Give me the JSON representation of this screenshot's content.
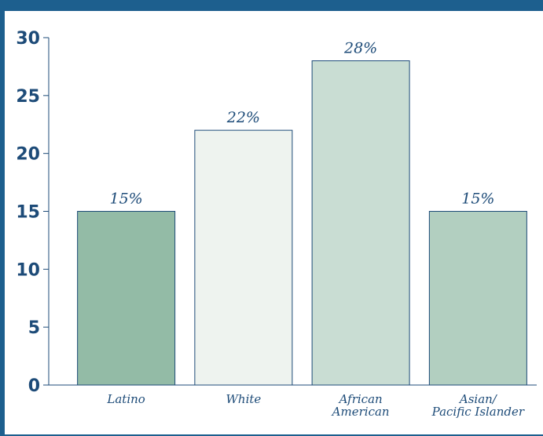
{
  "chart_data": {
    "type": "bar",
    "categories": [
      [
        "Latino"
      ],
      [
        "White"
      ],
      [
        "African",
        "American"
      ],
      [
        "Asian/",
        "Pacific Islander"
      ]
    ],
    "values": [
      15,
      22,
      28,
      15
    ],
    "value_labels": [
      "15%",
      "22%",
      "28%",
      "15%"
    ],
    "colors": [
      "#93bba6",
      "#eef3ef",
      "#c9ddd3",
      "#b2cfc0"
    ],
    "yticks": [
      0,
      5,
      10,
      15,
      20,
      25,
      30
    ],
    "ylim": [
      0,
      30
    ],
    "grid": false
  }
}
